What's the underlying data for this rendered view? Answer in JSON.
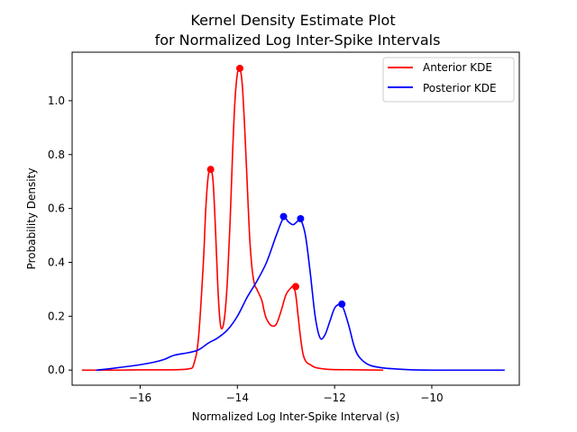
{
  "chart_data": {
    "type": "line",
    "title_line1": "Kernel Density Estimate Plot",
    "title_line2": "for Normalized Log Inter-Spike Intervals",
    "xlabel": "Normalized Log Inter-Spike Interval (s)",
    "ylabel": "Probability Density",
    "xlim": [
      -17.4,
      -8.2
    ],
    "ylim": [
      -0.056,
      1.18
    ],
    "xticks": [
      -16,
      -14,
      -12,
      -10
    ],
    "xtick_labels": [
      "−16",
      "−14",
      "−12",
      "−10"
    ],
    "yticks": [
      0.0,
      0.2,
      0.4,
      0.6,
      0.8,
      1.0
    ],
    "ytick_labels": [
      "0.0",
      "0.2",
      "0.4",
      "0.6",
      "0.8",
      "1.0"
    ],
    "grid": false,
    "legend_position": "top-right",
    "series": [
      {
        "name": "Anterior KDE",
        "color": "#ff0000",
        "x": [
          -17.2,
          -16.5,
          -16.0,
          -15.5,
          -15.2,
          -15.0,
          -14.9,
          -14.8,
          -14.7,
          -14.65,
          -14.6,
          -14.55,
          -14.5,
          -14.45,
          -14.4,
          -14.35,
          -14.3,
          -14.25,
          -14.2,
          -14.15,
          -14.1,
          -14.05,
          -14.0,
          -13.95,
          -13.9,
          -13.85,
          -13.8,
          -13.75,
          -13.7,
          -13.65,
          -13.6,
          -13.5,
          -13.45,
          -13.4,
          -13.3,
          -13.2,
          -13.1,
          -13.0,
          -12.9,
          -12.85,
          -12.8,
          -12.75,
          -12.7,
          -12.65,
          -12.6,
          -12.55,
          -12.5,
          -12.4,
          -12.2,
          -12.0,
          -11.5,
          -11.0
        ],
        "y": [
          0.0,
          0.0,
          0.001,
          0.001,
          0.002,
          0.005,
          0.02,
          0.12,
          0.4,
          0.6,
          0.72,
          0.745,
          0.7,
          0.52,
          0.3,
          0.17,
          0.16,
          0.22,
          0.35,
          0.55,
          0.8,
          1.0,
          1.1,
          1.12,
          1.06,
          0.9,
          0.7,
          0.5,
          0.38,
          0.32,
          0.3,
          0.26,
          0.22,
          0.19,
          0.165,
          0.17,
          0.22,
          0.28,
          0.305,
          0.31,
          0.28,
          0.2,
          0.12,
          0.06,
          0.035,
          0.025,
          0.02,
          0.01,
          0.004,
          0.002,
          0.001,
          0.0
        ]
      },
      {
        "name": "Posterior KDE",
        "color": "#0000ff",
        "x": [
          -16.9,
          -16.5,
          -16.0,
          -15.7,
          -15.5,
          -15.3,
          -15.0,
          -14.8,
          -14.6,
          -14.4,
          -14.2,
          -14.0,
          -13.8,
          -13.6,
          -13.4,
          -13.2,
          -13.05,
          -12.95,
          -12.85,
          -12.75,
          -12.7,
          -12.6,
          -12.5,
          -12.4,
          -12.3,
          -12.2,
          -12.1,
          -12.0,
          -11.9,
          -11.85,
          -11.8,
          -11.7,
          -11.6,
          -11.5,
          -11.3,
          -11.0,
          -10.5,
          -10.0,
          -9.5,
          -9.0,
          -8.5
        ],
        "y": [
          0.0,
          0.008,
          0.02,
          0.03,
          0.04,
          0.055,
          0.065,
          0.075,
          0.1,
          0.12,
          0.15,
          0.2,
          0.27,
          0.33,
          0.4,
          0.5,
          0.565,
          0.55,
          0.54,
          0.555,
          0.56,
          0.5,
          0.36,
          0.2,
          0.12,
          0.13,
          0.18,
          0.23,
          0.245,
          0.24,
          0.22,
          0.16,
          0.09,
          0.05,
          0.02,
          0.008,
          0.002,
          0.0,
          0.0,
          0.0,
          0.0
        ]
      }
    ],
    "peaks": [
      {
        "series": "Anterior KDE",
        "color": "#ff0000",
        "points": [
          [
            -14.55,
            0.745
          ],
          [
            -13.95,
            1.12
          ],
          [
            -12.8,
            0.31
          ]
        ]
      },
      {
        "series": "Posterior KDE",
        "color": "#0000ff",
        "points": [
          [
            -13.05,
            0.57
          ],
          [
            -12.7,
            0.562
          ],
          [
            -11.85,
            0.245
          ]
        ]
      }
    ]
  }
}
